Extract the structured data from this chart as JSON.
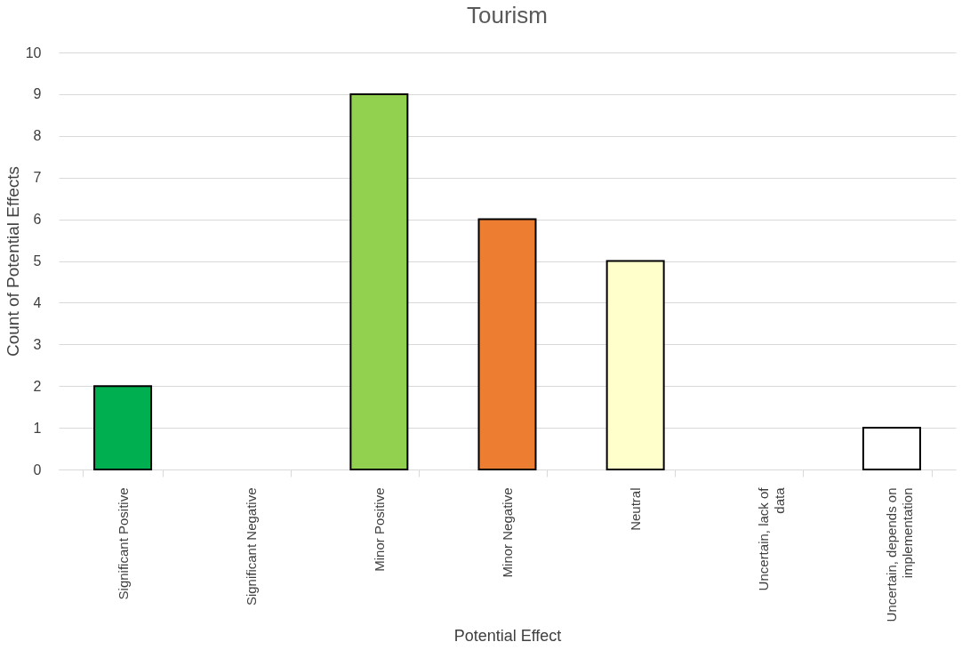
{
  "chart_data": {
    "type": "bar",
    "title": "Tourism",
    "xlabel": "Potential Effect",
    "ylabel": "Count of Potential Effects",
    "categories": [
      "Significant Positive",
      "Significant Negative",
      "Minor Positive",
      "Minor Negative",
      "Neutral",
      "Uncertain, lack of data",
      "Uncertain, depends on implementation"
    ],
    "values": [
      2,
      0,
      9,
      6,
      5,
      0,
      1
    ],
    "colors": [
      "#00b050",
      null,
      "#92d050",
      "#ed7d31",
      "#ffffcc",
      null,
      "#ffffff"
    ],
    "ylim": [
      0,
      10
    ],
    "yticks": [
      0,
      1,
      2,
      3,
      4,
      5,
      6,
      7,
      8,
      9,
      10
    ],
    "grid": "y"
  }
}
